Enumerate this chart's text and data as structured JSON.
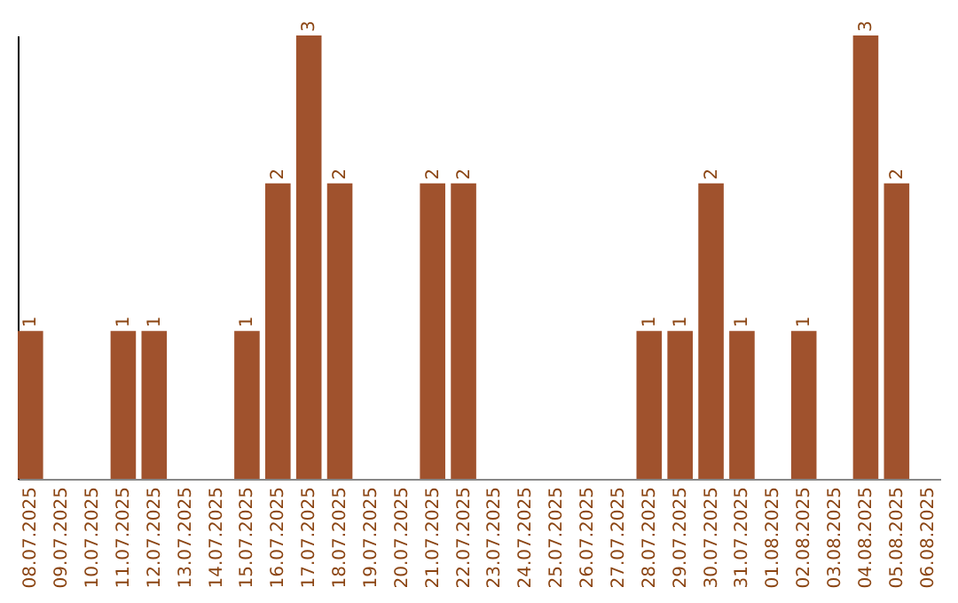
{
  "chart_data": {
    "type": "bar",
    "categories": [
      "08.07.2025",
      "09.07.2025",
      "10.07.2025",
      "11.07.2025",
      "12.07.2025",
      "13.07.2025",
      "14.07.2025",
      "15.07.2025",
      "16.07.2025",
      "17.07.2025",
      "18.07.2025",
      "19.07.2025",
      "20.07.2025",
      "21.07.2025",
      "22.07.2025",
      "23.07.2025",
      "24.07.2025",
      "25.07.2025",
      "26.07.2025",
      "27.07.2025",
      "28.07.2025",
      "29.07.2025",
      "30.07.2025",
      "31.07.2025",
      "01.08.2025",
      "02.08.2025",
      "03.08.2025",
      "04.08.2025",
      "05.08.2025",
      "06.08.2025"
    ],
    "values": [
      1,
      0,
      0,
      1,
      1,
      0,
      0,
      1,
      2,
      3,
      2,
      0,
      0,
      2,
      2,
      0,
      0,
      0,
      0,
      0,
      1,
      1,
      2,
      1,
      0,
      1,
      0,
      3,
      2,
      0
    ],
    "value_labels": [
      "1",
      null,
      null,
      "1",
      "1",
      null,
      null,
      "1",
      "2",
      "3",
      "2",
      null,
      null,
      "2",
      "2",
      null,
      null,
      null,
      null,
      null,
      "1",
      "1",
      "2",
      "1",
      null,
      "1",
      null,
      "3",
      "2",
      null
    ],
    "color": "#a0522d"
  }
}
